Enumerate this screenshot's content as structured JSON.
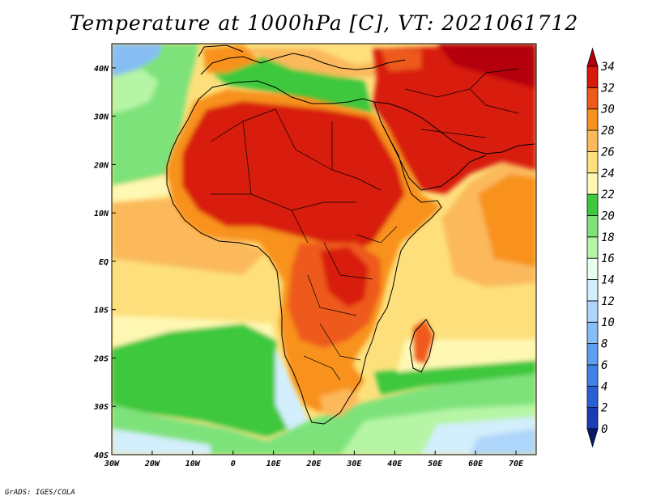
{
  "title": "Temperature at 1000hPa [C], VT: 2021061712",
  "credit": "GrADS: IGES/COLA",
  "map": {
    "lon_range": [
      -30,
      75
    ],
    "lat_range": [
      -40,
      45
    ],
    "x_ticks": [
      {
        "lon": -30,
        "label": "30W"
      },
      {
        "lon": -20,
        "label": "20W"
      },
      {
        "lon": -10,
        "label": "10W"
      },
      {
        "lon": 0,
        "label": "0"
      },
      {
        "lon": 10,
        "label": "10E"
      },
      {
        "lon": 20,
        "label": "20E"
      },
      {
        "lon": 30,
        "label": "30E"
      },
      {
        "lon": 40,
        "label": "40E"
      },
      {
        "lon": 50,
        "label": "50E"
      },
      {
        "lon": 60,
        "label": "60E"
      },
      {
        "lon": 70,
        "label": "70E"
      }
    ],
    "y_ticks": [
      {
        "lat": 40,
        "label": "40N"
      },
      {
        "lat": 30,
        "label": "30N"
      },
      {
        "lat": 20,
        "label": "20N"
      },
      {
        "lat": 10,
        "label": "10N"
      },
      {
        "lat": 0,
        "label": "EQ"
      },
      {
        "lat": -10,
        "label": "10S"
      },
      {
        "lat": -20,
        "label": "20S"
      },
      {
        "lat": -30,
        "label": "30S"
      },
      {
        "lat": -40,
        "label": "40S"
      }
    ]
  },
  "colorbar": {
    "levels": [
      "0",
      "2",
      "4",
      "6",
      "8",
      "10",
      "12",
      "14",
      "16",
      "18",
      "20",
      "22",
      "24",
      "26",
      "28",
      "30",
      "32",
      "34"
    ],
    "colors": [
      "#0a1a6e",
      "#1a3cb4",
      "#2a5fd6",
      "#3f82e8",
      "#5ea0ef",
      "#86bdf5",
      "#aed6fa",
      "#d3eefc",
      "#e8fff0",
      "#b6f5a6",
      "#7ee27a",
      "#3ec83e",
      "#fff8b4",
      "#fde07c",
      "#fbb95c",
      "#f8921e",
      "#ee5a1a",
      "#d81a0a",
      "#b4000c"
    ]
  },
  "chart_data": {
    "type": "heatmap",
    "title": "Temperature at 1000hPa [C], VT: 2021061712",
    "variable": "Temperature at 1000hPa",
    "unit": "C",
    "valid_time": "2021061712",
    "x_range": [
      -30,
      75
    ],
    "y_range": [
      -40,
      45
    ],
    "color_levels": [
      0,
      2,
      4,
      6,
      8,
      10,
      12,
      14,
      16,
      18,
      20,
      22,
      24,
      26,
      28,
      30,
      32,
      34
    ]
  }
}
